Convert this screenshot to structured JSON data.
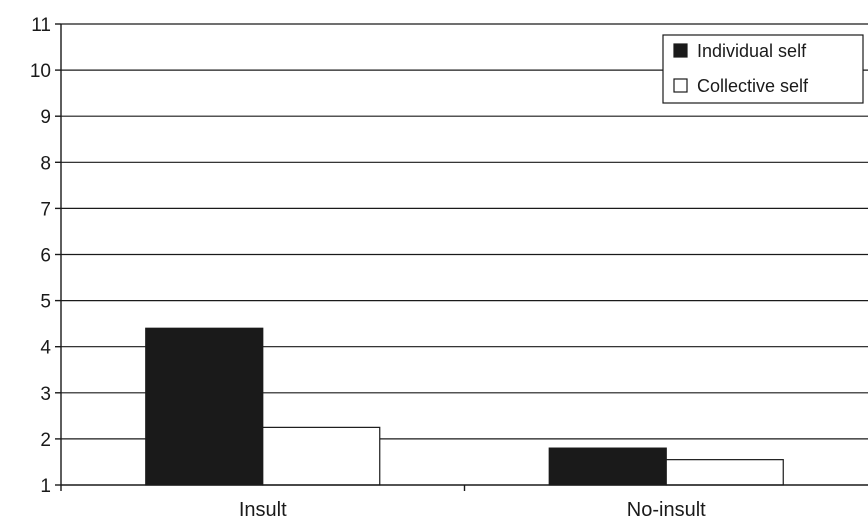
{
  "chart_data": {
    "type": "bar",
    "title": "",
    "xlabel": "",
    "ylabel": "",
    "categories": [
      "Insult",
      "No-insult"
    ],
    "series": [
      {
        "name": "Individual self",
        "values": [
          4.4,
          1.8
        ],
        "color": "#1a1a1a"
      },
      {
        "name": "Collective self",
        "values": [
          2.25,
          1.55
        ],
        "color": "#ffffff"
      }
    ],
    "ylim": [
      1,
      11
    ],
    "yticks": [
      1,
      2,
      3,
      4,
      5,
      6,
      7,
      8,
      9,
      10,
      11
    ],
    "grid": true,
    "legend_position": "top-right"
  }
}
